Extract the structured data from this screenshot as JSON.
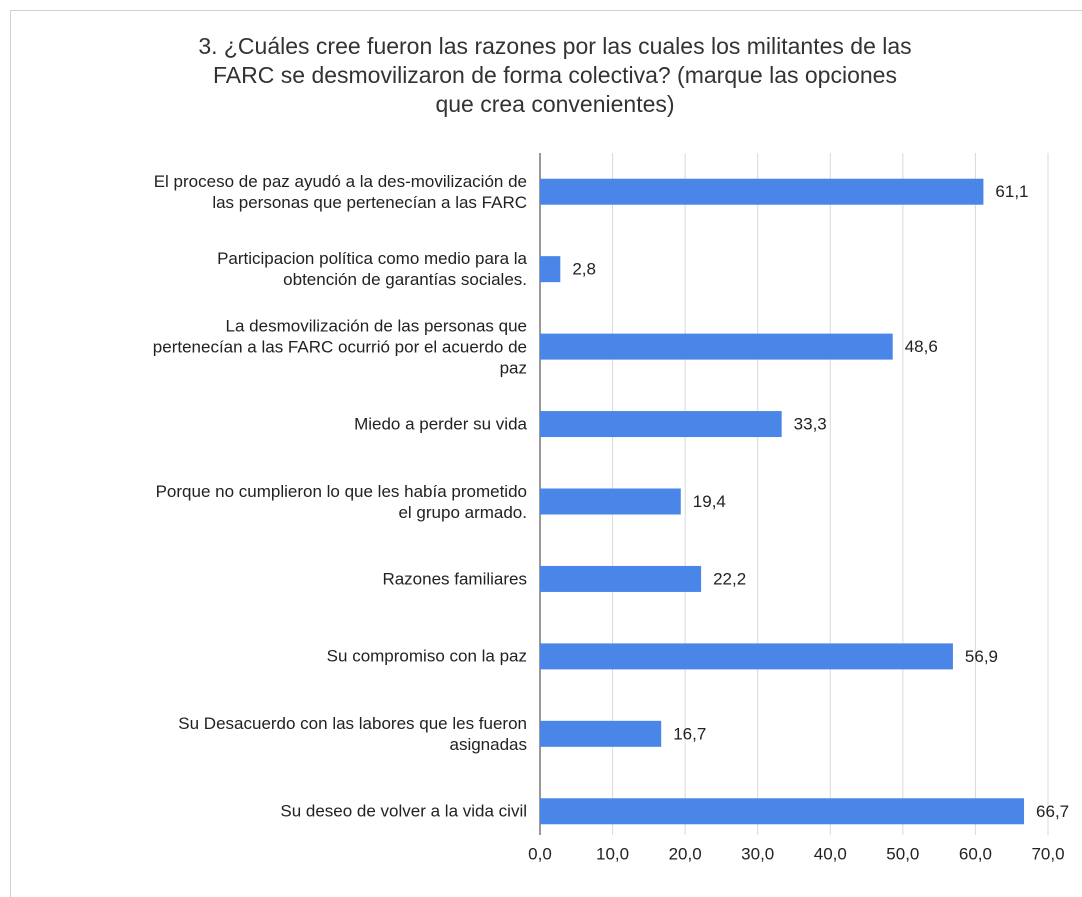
{
  "chart_data": {
    "type": "bar",
    "orientation": "horizontal",
    "title": "3. ¿Cuáles cree fueron las razones por las cuales los militantes de las\nFARC se desmovilizaron de forma colectiva? (marque las opciones\nque crea convenientes)",
    "categories": [
      "El proceso de paz ayudó a la des-movilización de\nlas personas que pertenecían a las FARC",
      "Participacion política como medio para la\nobtención de garantías sociales.",
      "La desmovilización de las personas que\npertenecían a las FARC ocurrió por el acuerdo de\npaz",
      "Miedo a perder su vida",
      "Porque no cumplieron lo que les había prometido\nel grupo armado.",
      "Razones familiares",
      "Su compromiso con la paz",
      "Su Desacuerdo con las labores que les fueron\nasignadas",
      "Su deseo de volver a la vida civil"
    ],
    "values": [
      61.1,
      2.8,
      48.6,
      33.3,
      19.4,
      22.2,
      56.9,
      16.7,
      66.7
    ],
    "value_labels": [
      "61,1",
      "2,8",
      "48,6",
      "33,3",
      "19,4",
      "22,2",
      "56,9",
      "16,7",
      "66,7"
    ],
    "color": "#4a86e8",
    "xlim": [
      0,
      70
    ],
    "xticks": [
      {
        "value": 0,
        "label": "0,0"
      },
      {
        "value": 10,
        "label": "10,0"
      },
      {
        "value": 20,
        "label": "20,0"
      },
      {
        "value": 30,
        "label": "30,0"
      },
      {
        "value": 40,
        "label": "40,0"
      },
      {
        "value": 50,
        "label": "50,0"
      },
      {
        "value": 60,
        "label": "60,0"
      },
      {
        "value": 70,
        "label": "70,0"
      }
    ],
    "grid": true
  }
}
